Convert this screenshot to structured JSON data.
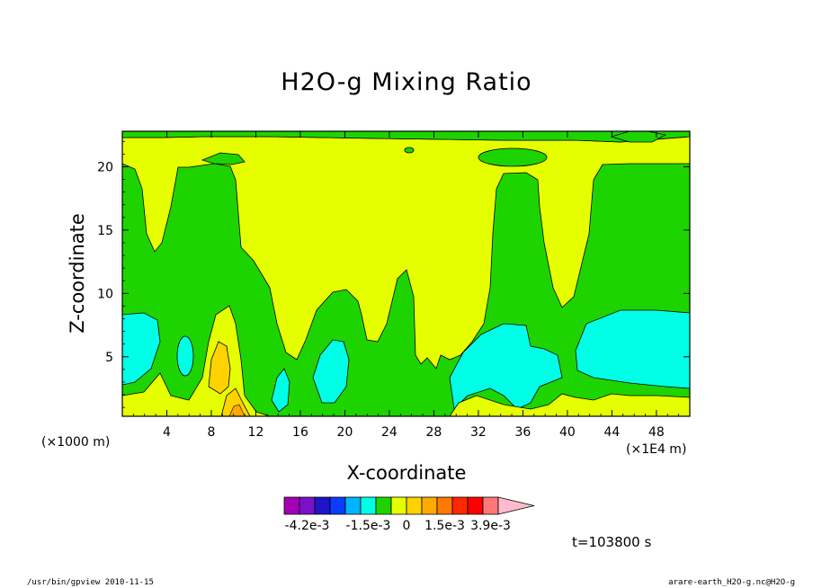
{
  "chart_data": {
    "type": "contour",
    "title": "H2O-g Mixing Ratio",
    "xlabel": "X-coordinate",
    "ylabel": "Z-coordinate",
    "x_unit_label": "(×1000 m)",
    "x_scale_label": "(×1E4 m)",
    "x_ticks": [
      4,
      8,
      12,
      16,
      20,
      24,
      28,
      32,
      36,
      40,
      44,
      48
    ],
    "y_ticks": [
      5,
      10,
      15,
      20
    ],
    "xlim": [
      0,
      51
    ],
    "ylim": [
      0.3,
      22.8
    ],
    "colorbar": {
      "colors": [
        "#a400b4",
        "#7a10c8",
        "#1e14c8",
        "#0a3cff",
        "#00b4ff",
        "#00ffe6",
        "#1ed400",
        "#e6ff00",
        "#ffd200",
        "#ffaa00",
        "#ff7a00",
        "#ff2800",
        "#ff0000",
        "#ff7777",
        "#ffbbcc"
      ],
      "tick_labels": [
        "-4.2e-3",
        "-1.5e-3",
        "0",
        "1.5e-3",
        "3.9e-3"
      ]
    },
    "time_label": "t=103800 s"
  },
  "footer": {
    "left": "/usr/bin/gpview  2010-11-15",
    "right": "arare-earth_H2O-g.nc@H2O-g"
  }
}
